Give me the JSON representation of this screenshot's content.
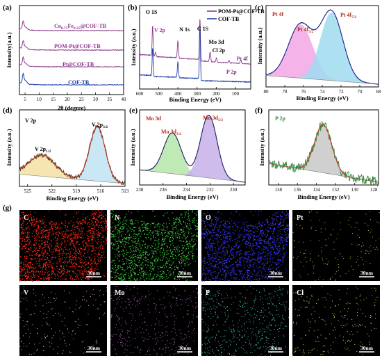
{
  "chart_data": [
    {
      "panel": "(a)",
      "type": "line",
      "xlabel": "2θ (degree)",
      "ylabel": "Intensity(a.u.)",
      "xlim": [
        3,
        40
      ],
      "xticks": [
        5,
        10,
        15,
        20,
        25,
        30,
        35,
        40
      ],
      "y_ticks_shown": false,
      "series": [
        {
          "name": "COF-TB",
          "color": "#1f3fa6",
          "offset": 0,
          "peak_x": 4.3,
          "peak_h": 0.55
        },
        {
          "name": "Pt@COF-TB",
          "color": "#8b3a8b",
          "offset": 1,
          "peak_x": 4.3,
          "peak_h": 0.45
        },
        {
          "name": "POM-Pt@COF-TB",
          "color": "#8b3a8b",
          "offset": 2,
          "peak_x": 4.3,
          "peak_h": 0.45
        },
        {
          "name": "Co0.75Fe0.25@COF-TB",
          "color": "#8b3a8b",
          "offset": 3,
          "peak_x": 4.3,
          "peak_h": 0.45
        }
      ],
      "labels": [
        {
          "text": "Co",
          "sub1": "0.75",
          "mid": "Fe",
          "sub2": "0.25",
          "tail": "@COF-TB",
          "color": "#8b3a8b",
          "series": 3
        },
        {
          "text": "POM-Pt@COF-TB",
          "color": "#8b3a8b",
          "series": 2
        },
        {
          "text": "Pt@COF-TB",
          "color": "#8b3a8b",
          "series": 1
        },
        {
          "text": "COF-TB",
          "color": "#1f3fa6",
          "series": 0
        }
      ]
    },
    {
      "panel": "(b)",
      "type": "line",
      "xlabel": "Binding Energy (eV)",
      "ylabel": "Intensity (a.u.)",
      "xlim": [
        600,
        20
      ],
      "xticks": [
        600,
        500,
        400,
        300,
        200,
        100
      ],
      "legend": {
        "placement": "top-right",
        "entries": [
          "POM-Pt@COF-TB",
          "COF-TB"
        ],
        "colors": [
          "#8b3a8b",
          "#1f3fa6"
        ]
      },
      "series": [
        {
          "name": "POM-Pt@COF-TB",
          "color": "#8b3a8b",
          "peaks": [
            {
              "x": 532,
              "h": 0.62,
              "w": 2.5
            },
            {
              "x": 517,
              "h": 0.08,
              "w": 3
            },
            {
              "x": 400,
              "h": 0.35,
              "w": 3
            },
            {
              "x": 285,
              "h": 0.85,
              "w": 2.5
            },
            {
              "x": 232,
              "h": 0.2,
              "w": 3
            },
            {
              "x": 199,
              "h": 0.08,
              "w": 3
            },
            {
              "x": 133,
              "h": 0.05,
              "w": 3
            },
            {
              "x": 72,
              "h": 0.07,
              "w": 3
            }
          ]
        },
        {
          "name": "COF-TB",
          "color": "#1f3fa6",
          "peaks": [
            {
              "x": 532,
              "h": 0.45,
              "w": 2.5
            },
            {
              "x": 400,
              "h": 0.25,
              "w": 3
            },
            {
              "x": 285,
              "h": 0.88,
              "w": 2.5
            }
          ]
        }
      ],
      "annotations": [
        {
          "text": "O 1S",
          "x": 532,
          "color": "#000000"
        },
        {
          "text": "V 2p",
          "x": 517,
          "color": "#8b3a8b"
        },
        {
          "text": "N 1s",
          "x": 400,
          "color": "#000000"
        },
        {
          "text": "C 1S",
          "x": 285,
          "color": "#000000"
        },
        {
          "text": "Mo 3d",
          "x": 232,
          "color": "#000000"
        },
        {
          "text": "Cl 2p",
          "x": 199,
          "color": "#000000"
        },
        {
          "text": "P 2p",
          "x": 133,
          "color": "#8b3a8b"
        },
        {
          "text": "Pt 4f",
          "x": 72,
          "color": "#8b3a8b"
        }
      ]
    },
    {
      "panel": "(c)",
      "type": "area",
      "title": "Pt 4f",
      "xlabel": "Binding Energy (eV)",
      "ylabel": "Intensity (a.u.)",
      "xlim": [
        80,
        68
      ],
      "xticks": [
        80,
        78,
        76,
        74,
        72,
        70,
        68
      ],
      "peaks": [
        {
          "label": "Pt 4f",
          "sub": "5/2",
          "center": 76.3,
          "height": 0.75,
          "width": 1.3,
          "fill": "#f2a7e6"
        },
        {
          "label": "Pt 4f",
          "sub": "7/2",
          "center": 73.0,
          "height": 0.95,
          "width": 1.2,
          "fill": "#9fdcf0"
        }
      ],
      "envelope_color": "#2b2b8f",
      "raw_color": "#3a2a8a"
    },
    {
      "panel": "(d)",
      "type": "area",
      "title": "V 2p",
      "xlabel": "Binding Energy (eV)",
      "ylabel": "Intensity (a.u.)",
      "xlim": [
        526,
        513
      ],
      "xticks": [
        525,
        522,
        519,
        516,
        513
      ],
      "peaks": [
        {
          "label": "V 2p",
          "sub": "1/2",
          "center": 523.2,
          "height": 0.32,
          "width": 1.6,
          "fill": "#f3e0a3"
        },
        {
          "label": "V 2p",
          "sub": "3/2",
          "center": 516.4,
          "height": 0.82,
          "width": 0.95,
          "fill": "#bfe3f2"
        }
      ],
      "envelope_color": "#c0392b",
      "raw_color": "#5a3a1a"
    },
    {
      "panel": "(e)",
      "type": "area",
      "title": "Mo 3d",
      "xlabel": "Binding Energy (eV)",
      "ylabel": "Intensity (a.u.)",
      "xlim": [
        238,
        229
      ],
      "xticks": [
        238,
        236,
        234,
        232,
        230
      ],
      "peaks": [
        {
          "label": "Mo 3d",
          "sub": "3/2",
          "center": 235.2,
          "height": 0.6,
          "width": 0.75,
          "fill": "#b4e6a8"
        },
        {
          "label": "Mo 3d",
          "sub": "5/2",
          "center": 232.1,
          "height": 0.92,
          "width": 0.7,
          "fill": "#c7b0ea"
        }
      ],
      "envelope_color": "#2a2a6a",
      "raw_color": "#2a2a6a"
    },
    {
      "panel": "(f)",
      "type": "area",
      "title": "P 2p",
      "xlabel": "Binding Energy (eV)",
      "ylabel": "Intensity (a.u.)",
      "xlim": [
        139,
        127.5
      ],
      "xticks": [
        138,
        136,
        134,
        132,
        130,
        128
      ],
      "peaks": [
        {
          "label": "",
          "sub": "",
          "center": 133.3,
          "height": 0.72,
          "width": 0.9,
          "fill": "#c8c8c8"
        }
      ],
      "envelope_color": "#c0392b",
      "raw_color": "#2e8b3a"
    }
  ],
  "maps": {
    "panel": "(g)",
    "scale_text": "30nm",
    "tiles": [
      {
        "element": "C",
        "color": "#ff2a1a",
        "density": 1600
      },
      {
        "element": "N",
        "color": "#38d038",
        "density": 1300
      },
      {
        "element": "O",
        "color": "#3a3aff",
        "density": 1400
      },
      {
        "element": "Pt",
        "color": "#c8c850",
        "density": 160
      },
      {
        "element": "V",
        "color": "#e8b8e8",
        "density": 190
      },
      {
        "element": "Mo",
        "color": "#c070d0",
        "density": 380
      },
      {
        "element": "P",
        "color": "#50d0d0",
        "density": 520
      },
      {
        "element": "Cl",
        "color": "#e0e060",
        "density": 220
      }
    ]
  }
}
